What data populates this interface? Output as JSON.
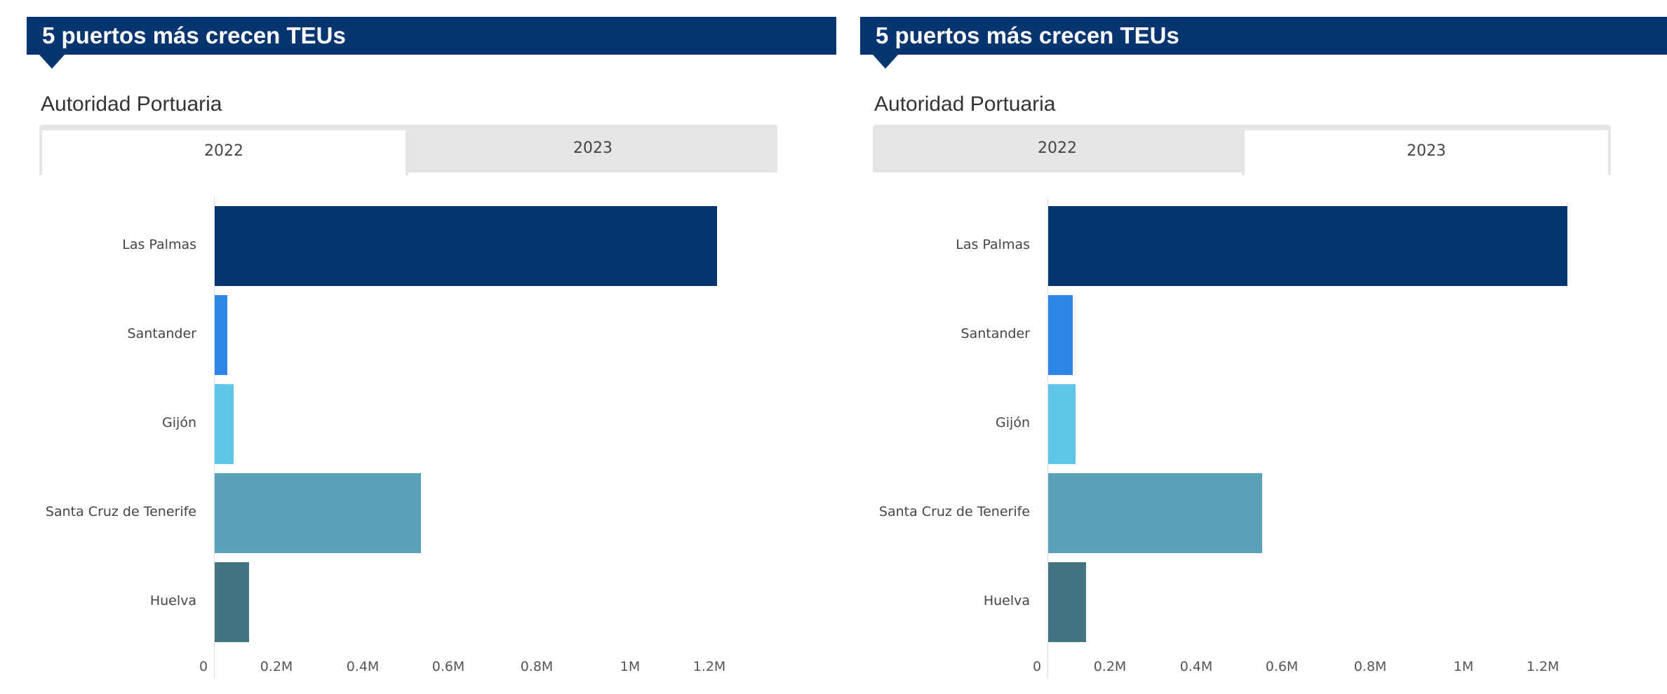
{
  "panels": [
    {
      "title": "5 puertos más crecen TEUs",
      "subtitle": "Autoridad Portuaria",
      "tabs": [
        "2022",
        "2023"
      ],
      "active_tab": 0
    },
    {
      "title": "5 puertos más crecen TEUs",
      "subtitle": "Autoridad Portuaria",
      "tabs": [
        "2022",
        "2023"
      ],
      "active_tab": 1
    }
  ],
  "chart_data": [
    {
      "type": "bar",
      "orientation": "horizontal",
      "year": "2022",
      "categories": [
        "Las Palmas",
        "Santander",
        "Gijón",
        "Santa Cruz de Tenerife",
        "Huelva"
      ],
      "values": [
        1220000,
        30000,
        46000,
        500000,
        83000
      ],
      "colors": [
        "#063570",
        "#2e86e8",
        "#5ec6e6",
        "#5ba2b8",
        "#437482"
      ],
      "xticks": [
        "0",
        "0.2M",
        "0.4M",
        "0.6M",
        "0.8M",
        "1M",
        "1.2M"
      ],
      "xlim": [
        0,
        1300000
      ]
    },
    {
      "type": "bar",
      "orientation": "horizontal",
      "year": "2023",
      "categories": [
        "Las Palmas",
        "Santander",
        "Gijón",
        "Santa Cruz de Tenerife",
        "Huelva"
      ],
      "values": [
        1260000,
        60000,
        67000,
        520000,
        92000
      ],
      "colors": [
        "#063570",
        "#2e86e8",
        "#5ec6e6",
        "#5ba2b8",
        "#437482"
      ],
      "xticks": [
        "0",
        "0.2M",
        "0.4M",
        "0.6M",
        "0.8M",
        "1M",
        "1.2M"
      ],
      "xlim": [
        0,
        1300000
      ]
    }
  ]
}
